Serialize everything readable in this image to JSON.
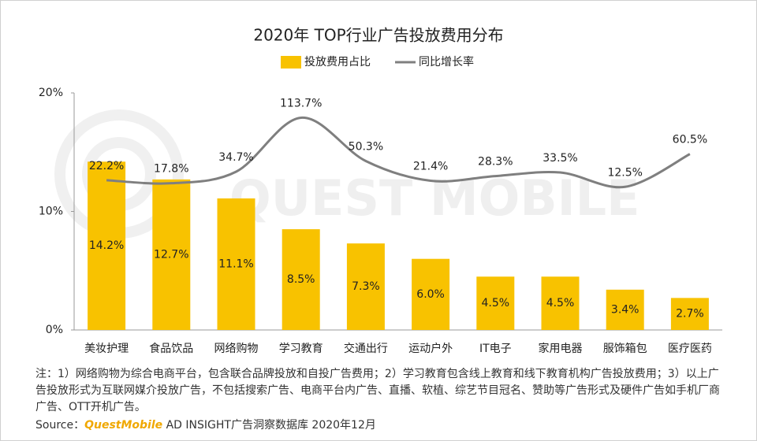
{
  "chart_data": {
    "type": "bar",
    "title": "2020年 TOP行业广告投放费用分布",
    "watermark": "QUEST MOBILE",
    "categories": [
      "美妆护理",
      "食品饮品",
      "网络购物",
      "学习教育",
      "交通出行",
      "运动户外",
      "IT电子",
      "家用电器",
      "服饰箱包",
      "医疗医药"
    ],
    "series": [
      {
        "name": "投放费用占比",
        "type": "bar",
        "color": "#f8c200",
        "values": [
          14.2,
          12.7,
          11.1,
          8.5,
          7.3,
          6.0,
          4.5,
          4.5,
          3.4,
          2.7
        ],
        "value_labels": [
          "14.2%",
          "12.7%",
          "11.1%",
          "8.5%",
          "7.3%",
          "6.0%",
          "4.5%",
          "4.5%",
          "3.4%",
          "2.7%"
        ]
      },
      {
        "name": "同比增长率",
        "type": "line",
        "axis": "y2",
        "color": "#7f7f7f",
        "values": [
          22.2,
          17.8,
          34.7,
          113.7,
          50.3,
          21.4,
          28.3,
          33.5,
          12.5,
          60.5
        ],
        "value_labels": [
          "22.2%",
          "17.8%",
          "34.7%",
          "113.7%",
          "50.3%",
          "21.4%",
          "28.3%",
          "33.5%",
          "12.5%",
          "60.5%"
        ]
      }
    ],
    "ylim": [
      0,
      20
    ],
    "yticks": [
      {
        "value": 0,
        "label": "0%"
      },
      {
        "value": 10,
        "label": "10%"
      },
      {
        "value": 20,
        "label": "20%"
      }
    ],
    "y2lim": [
      -197,
      150
    ],
    "grid": false,
    "legend": "top",
    "note": "注：1）网络购物为综合电商平台，包含联合品牌投放和自投广告费用；2）学习教育包含线上教育和线下教育机构广告投放费用；3）以上广告投放形式为互联网媒介投放广告，不包括搜索广告、电商平台内广告、直播、软植、综艺节目冠名、赞助等广告形式及硬件广告如手机厂商广告、OTT开机广告。",
    "source_prefix": "Source：",
    "source_brand": "QuestMobile",
    "source_text": "AD INSIGHT广告洞察数据库 2020年12月"
  }
}
